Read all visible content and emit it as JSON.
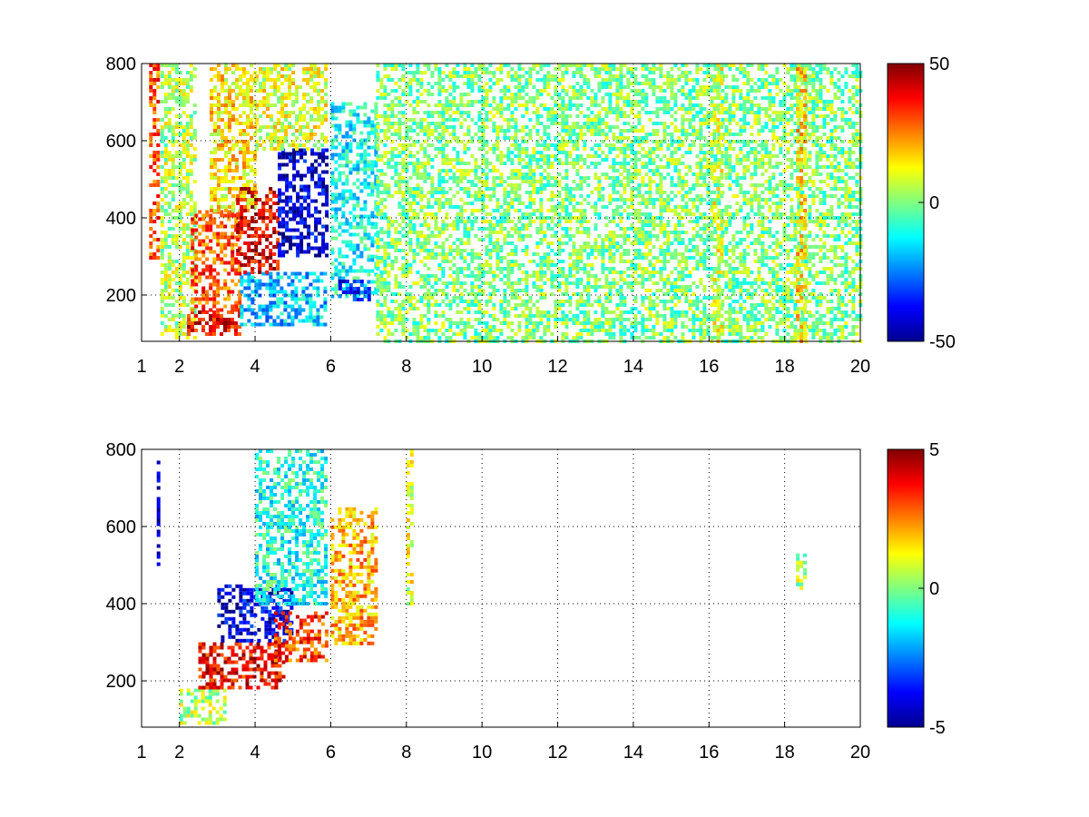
{
  "chart_data": [
    {
      "type": "heatmap",
      "title": "",
      "xlabel": "",
      "ylabel": "",
      "xlim": [
        1,
        20
      ],
      "ylim": [
        80,
        800
      ],
      "x_ticks": [
        1,
        2,
        4,
        6,
        8,
        10,
        12,
        14,
        16,
        18,
        20
      ],
      "x_tick_labels": [
        "1",
        "2",
        "4",
        "6",
        "8",
        "10",
        "12",
        "14",
        "16",
        "18",
        "20"
      ],
      "y_ticks": [
        200,
        400,
        600,
        800
      ],
      "y_tick_labels": [
        "200",
        "400",
        "600",
        "800"
      ],
      "grid": true,
      "colormap": "jet",
      "colorbar": {
        "clim": [
          -50,
          50
        ],
        "ticks": [
          -50,
          0,
          50
        ],
        "tick_labels": [
          "-50",
          "0",
          "50"
        ],
        "placement": "right"
      },
      "regions": [
        {
          "x": [
            1.2,
            1.4
          ],
          "y": [
            300,
            800
          ],
          "value": 30
        },
        {
          "x": [
            1.5,
            2.4
          ],
          "y": [
            90,
            800
          ],
          "value": 5
        },
        {
          "x": [
            2.2,
            3.6
          ],
          "y": [
            95,
            160
          ],
          "value": 38
        },
        {
          "x": [
            2.3,
            3.6
          ],
          "y": [
            160,
            420
          ],
          "value": 30
        },
        {
          "x": [
            2.8,
            4.0
          ],
          "y": [
            420,
            800
          ],
          "value": 15
        },
        {
          "x": [
            3.6,
            5.9
          ],
          "y": [
            120,
            260
          ],
          "value": -18
        },
        {
          "x": [
            3.5,
            4.6
          ],
          "y": [
            260,
            480
          ],
          "value": 40
        },
        {
          "x": [
            4.6,
            5.9
          ],
          "y": [
            300,
            580
          ],
          "value": -42
        },
        {
          "x": [
            4.0,
            5.9
          ],
          "y": [
            580,
            800
          ],
          "value": 10
        },
        {
          "x": [
            6.0,
            7.2
          ],
          "y": [
            200,
            700
          ],
          "value": -12
        },
        {
          "x": [
            6.2,
            7.0
          ],
          "y": [
            190,
            240
          ],
          "value": -35
        },
        {
          "x": [
            7.2,
            20.0
          ],
          "y": [
            80,
            800
          ],
          "value": 0
        },
        {
          "x": [
            16.1,
            16.3
          ],
          "y": [
            80,
            800
          ],
          "value": 8
        },
        {
          "x": [
            18.3,
            18.5
          ],
          "y": [
            80,
            800
          ],
          "value": 15
        }
      ]
    },
    {
      "type": "heatmap",
      "title": "",
      "xlabel": "",
      "ylabel": "",
      "xlim": [
        1,
        20
      ],
      "ylim": [
        80,
        800
      ],
      "x_ticks": [
        1,
        2,
        4,
        6,
        8,
        10,
        12,
        14,
        16,
        18,
        20
      ],
      "x_tick_labels": [
        "1",
        "2",
        "4",
        "6",
        "8",
        "10",
        "12",
        "14",
        "16",
        "18",
        "20"
      ],
      "y_ticks": [
        200,
        400,
        600,
        800
      ],
      "y_tick_labels": [
        "200",
        "400",
        "600",
        "800"
      ],
      "grid": true,
      "colormap": "jet",
      "colorbar": {
        "clim": [
          -5,
          5
        ],
        "ticks": [
          -5,
          0,
          5
        ],
        "tick_labels": [
          "-5",
          "0",
          "5"
        ],
        "placement": "right"
      },
      "regions": [
        {
          "x": [
            1.4,
            1.45
          ],
          "y": [
            500,
            780
          ],
          "value": -4.5
        },
        {
          "x": [
            2.0,
            3.2
          ],
          "y": [
            90,
            180
          ],
          "value": 0.5
        },
        {
          "x": [
            2.5,
            4.8
          ],
          "y": [
            180,
            300
          ],
          "value": 3.8
        },
        {
          "x": [
            3.0,
            5.0
          ],
          "y": [
            300,
            450
          ],
          "value": -4
        },
        {
          "x": [
            4.5,
            5.9
          ],
          "y": [
            250,
            380
          ],
          "value": 3.2
        },
        {
          "x": [
            4.0,
            5.9
          ],
          "y": [
            400,
            800
          ],
          "value": -1
        },
        {
          "x": [
            6.0,
            7.2
          ],
          "y": [
            300,
            650
          ],
          "value": 2
        },
        {
          "x": [
            8.0,
            8.1
          ],
          "y": [
            400,
            800
          ],
          "value": 1
        },
        {
          "x": [
            18.3,
            18.5
          ],
          "y": [
            440,
            530
          ],
          "value": 0.5
        }
      ]
    }
  ]
}
